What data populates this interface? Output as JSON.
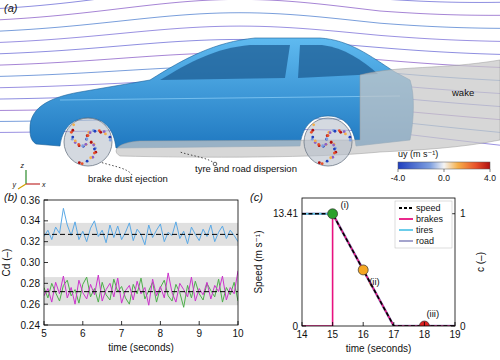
{
  "chart_data": [
    {
      "type": "illustration",
      "panel": "(a)",
      "annotations": [
        "brake dust ejection",
        "tyre and road dispersion",
        "wake"
      ],
      "axes_labels": [
        "z",
        "y",
        "x"
      ],
      "colorbar": {
        "label": "uy (m s⁻¹)",
        "lim": [
          -4,
          4
        ],
        "ticks": [
          {
            "value": -4,
            "label": "-4.0"
          },
          {
            "value": 0,
            "label": "0.0"
          },
          {
            "value": 4,
            "label": "4.0"
          }
        ]
      }
    },
    {
      "type": "line",
      "panel": "(b)",
      "x_label": "time (seconds)",
      "y_label": "Cd (–)",
      "x": [
        5,
        5.1,
        5.2,
        5.3,
        5.4,
        5.5,
        5.6,
        5.7,
        5.8,
        5.9,
        6,
        6.1,
        6.2,
        6.3,
        6.4,
        6.5,
        6.6,
        6.7,
        6.8,
        6.9,
        7,
        7.1,
        7.2,
        7.3,
        7.4,
        7.5,
        7.6,
        7.7,
        7.8,
        7.9,
        8,
        8.1,
        8.2,
        8.3,
        8.4,
        8.5,
        8.6,
        8.7,
        8.8,
        8.9,
        9,
        9.1,
        9.2,
        9.3,
        9.4,
        9.5,
        9.6,
        9.7,
        9.8,
        9.9,
        10
      ],
      "xlim": [
        5,
        10
      ],
      "xticks": [
        5,
        6,
        7,
        8,
        9,
        10
      ],
      "ylim": [
        0.24,
        0.36
      ],
      "yticks": [
        0.24,
        0.26,
        0.28,
        {
          "value": 0.3,
          "label": "0.30"
        },
        0.32,
        0.34,
        0.36
      ],
      "series": [
        {
          "color": "#5aa9e6",
          "values": [
            0.325,
            0.331,
            0.322,
            0.334,
            0.328,
            0.352,
            0.336,
            0.326,
            0.339,
            0.322,
            0.33,
            0.32,
            0.333,
            0.34,
            0.325,
            0.331,
            0.319,
            0.336,
            0.324,
            0.335,
            0.322,
            0.329,
            0.338,
            0.321,
            0.332,
            0.327,
            0.317,
            0.336,
            0.324,
            0.331,
            0.337,
            0.32,
            0.329,
            0.326,
            0.339,
            0.323,
            0.33,
            0.318,
            0.334,
            0.327,
            0.321,
            0.332,
            0.325,
            0.336,
            0.32,
            0.329,
            0.335,
            0.323,
            0.331,
            0.326,
            0.32
          ]
        },
        {
          "color": "#cc33cc",
          "values": [
            0.268,
            0.275,
            0.262,
            0.281,
            0.27,
            0.287,
            0.266,
            0.276,
            0.26,
            0.283,
            0.271,
            0.265,
            0.279,
            0.269,
            0.288,
            0.263,
            0.274,
            0.28,
            0.267,
            0.285,
            0.261,
            0.273,
            0.278,
            0.264,
            0.282,
            0.27,
            0.276,
            0.259,
            0.284,
            0.268,
            0.277,
            0.266,
            0.29,
            0.271,
            0.262,
            0.28,
            0.274,
            0.267,
            0.286,
            0.263,
            0.275,
            0.269,
            0.281,
            0.265,
            0.278,
            0.272,
            0.287,
            0.264,
            0.276,
            0.27,
            0.292
          ]
        },
        {
          "color": "#4daf4a",
          "values": [
            0.276,
            0.266,
            0.28,
            0.271,
            0.263,
            0.278,
            0.283,
            0.268,
            0.274,
            0.261,
            0.279,
            0.286,
            0.267,
            0.275,
            0.262,
            0.281,
            0.269,
            0.264,
            0.284,
            0.272,
            0.277,
            0.266,
            0.26,
            0.279,
            0.27,
            0.285,
            0.265,
            0.273,
            0.281,
            0.262,
            0.276,
            0.283,
            0.268,
            0.263,
            0.279,
            0.271,
            0.257,
            0.278,
            0.266,
            0.282,
            0.27,
            0.264,
            0.28,
            0.273,
            0.267,
            0.284,
            0.262,
            0.276,
            0.269,
            0.281,
            0.263
          ]
        }
      ],
      "means": [
        0.327,
        0.272
      ],
      "bands": [
        [
          0.316,
          0.338
        ],
        [
          0.259,
          0.286
        ]
      ]
    },
    {
      "type": "line",
      "panel": "(c)",
      "x_label": "time (seconds)",
      "y_label": "Speed (m s⁻¹)",
      "y2_label": "c (–)",
      "x": [
        14,
        15,
        15,
        16,
        17,
        18,
        19
      ],
      "xlim": [
        14,
        19
      ],
      "xticks": [
        14,
        15,
        16,
        17,
        18,
        19
      ],
      "ylim": [
        0,
        15.3
      ],
      "yticks": [
        0,
        13.41
      ],
      "y2lim": [
        0,
        1.14
      ],
      "y2ticks": [
        0,
        1
      ],
      "legend": "upper right",
      "series": [
        {
          "name": "speed",
          "color": "#000000",
          "line_style": "dashed",
          "values": [
            13.41,
            13.41,
            13.41,
            6.705,
            0,
            0,
            0
          ]
        },
        {
          "name": "brakes",
          "color": "#e8117f",
          "axis": "y2",
          "values": [
            0,
            0,
            1,
            0.5,
            0,
            0,
            0
          ]
        },
        {
          "name": "tires",
          "color": "#5bc8e8",
          "axis": "y2",
          "values": [
            1,
            1,
            1,
            0.5,
            0,
            0,
            0
          ]
        },
        {
          "name": "road",
          "color": "#9a9ac8",
          "axis": "y2",
          "values": [
            1,
            1,
            1,
            0.5,
            0,
            0,
            0
          ]
        }
      ],
      "points": [
        {
          "label": "(i)",
          "x": 15,
          "y": 13.41,
          "color": "#2ca02c"
        },
        {
          "label": "(ii)",
          "x": 16,
          "y": 6.705,
          "color": "#f5a623"
        },
        {
          "label": "(iii)",
          "x": 18,
          "y": 0,
          "color": "#e02020"
        }
      ]
    }
  ]
}
